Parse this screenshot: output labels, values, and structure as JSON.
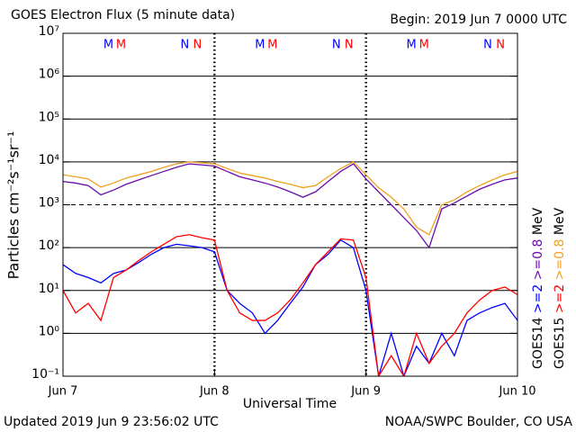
{
  "chart_data": {
    "type": "line",
    "title": "GOES Electron Flux (5 minute data)",
    "begin": "Begin: 2019 Jun 7 0000 UTC",
    "xlabel": "Universal Time",
    "ylabel": "Particles cm⁻²s⁻¹sr⁻¹",
    "updated": "Updated 2019 Jun  9 23:56:02 UTC",
    "credit": "NOAA/SWPC Boulder, CO USA",
    "log_y": true,
    "grid": true,
    "threshold": 1000,
    "legend_unit": "MeV",
    "x": [
      0,
      2,
      4,
      6,
      8,
      10,
      12,
      14,
      16,
      18,
      20,
      22,
      24,
      26,
      28,
      30,
      32,
      34,
      36,
      38,
      40,
      42,
      44,
      46,
      48,
      50,
      52,
      54,
      56,
      58,
      60,
      62,
      64,
      66,
      68,
      70,
      72
    ],
    "xlim": [
      0,
      72
    ],
    "xticks": [
      {
        "value": 0,
        "label": "Jun 7"
      },
      {
        "value": 24,
        "label": "Jun 8"
      },
      {
        "value": 48,
        "label": "Jun 9"
      },
      {
        "value": 72,
        "label": "Jun 10"
      }
    ],
    "ylim": [
      0.1,
      10000000
    ],
    "yticks": [
      {
        "value": 0.1,
        "label": "10⁻¹"
      },
      {
        "value": 1,
        "label": "10⁰"
      },
      {
        "value": 10,
        "label": "10¹"
      },
      {
        "value": 100,
        "label": "10²"
      },
      {
        "value": 1000,
        "label": "10³"
      },
      {
        "value": 10000,
        "label": "10⁴"
      },
      {
        "value": 100000,
        "label": "10⁵"
      },
      {
        "value": 1000000,
        "label": "10⁶"
      },
      {
        "value": 10000000,
        "label": "10⁷"
      }
    ],
    "series": [
      {
        "name": ">=2",
        "satellite": "GOES14",
        "color": "#0000ff",
        "values": [
          40,
          25,
          20,
          15,
          25,
          30,
          45,
          70,
          100,
          120,
          110,
          100,
          80,
          10,
          5,
          3,
          1,
          2,
          5,
          12,
          40,
          70,
          150,
          100,
          10,
          0.1,
          1,
          0.1,
          0.5,
          0.2,
          1,
          0.3,
          2,
          3,
          4,
          5,
          2
        ]
      },
      {
        "name": ">=0.8",
        "satellite": "GOES14",
        "color": "#6a0dad",
        "values": [
          3500,
          3200,
          2800,
          1700,
          2200,
          3000,
          3800,
          4800,
          6000,
          7500,
          9000,
          8500,
          8000,
          6000,
          4500,
          3800,
          3200,
          2600,
          2000,
          1500,
          2000,
          3500,
          6000,
          9000,
          4000,
          2000,
          1000,
          500,
          250,
          100,
          800,
          1100,
          1600,
          2300,
          3000,
          3800,
          4200
        ]
      },
      {
        "name": ">=2",
        "satellite": "GOES15",
        "color": "#ff0000",
        "values": [
          10,
          3,
          5,
          2,
          20,
          30,
          50,
          80,
          120,
          180,
          200,
          170,
          150,
          10,
          3,
          2,
          2,
          3,
          6,
          15,
          40,
          80,
          160,
          150,
          20,
          0.1,
          0.3,
          0.1,
          1,
          0.2,
          0.5,
          1,
          3,
          6,
          10,
          12,
          8
        ]
      },
      {
        "name": ">=0.8",
        "satellite": "GOES15",
        "color": "#f0a020",
        "values": [
          5000,
          4500,
          4000,
          2600,
          3200,
          4200,
          5000,
          6000,
          7500,
          9000,
          10000,
          9500,
          9000,
          7000,
          5500,
          4800,
          4200,
          3500,
          3000,
          2500,
          2800,
          4500,
          7000,
          10000,
          5000,
          2500,
          1500,
          800,
          300,
          200,
          1000,
          1300,
          2000,
          2800,
          3800,
          5000,
          6000
        ]
      }
    ],
    "markers": [
      {
        "label": "M",
        "color": "#0000ff",
        "x": 7.2
      },
      {
        "label": "M",
        "color": "#ff0000",
        "x": 9.2
      },
      {
        "label": "N",
        "color": "#0000ff",
        "x": 19.3
      },
      {
        "label": "N",
        "color": "#ff0000",
        "x": 21.3
      },
      {
        "label": "M",
        "color": "#0000ff",
        "x": 31.2
      },
      {
        "label": "M",
        "color": "#ff0000",
        "x": 33.2
      },
      {
        "label": "N",
        "color": "#0000ff",
        "x": 43.3
      },
      {
        "label": "N",
        "color": "#ff0000",
        "x": 45.3
      },
      {
        "label": "M",
        "color": "#0000ff",
        "x": 55.2
      },
      {
        "label": "M",
        "color": "#ff0000",
        "x": 57.2
      },
      {
        "label": "N",
        "color": "#0000ff",
        "x": 67.3
      },
      {
        "label": "N",
        "color": "#ff0000",
        "x": 69.3
      }
    ]
  }
}
